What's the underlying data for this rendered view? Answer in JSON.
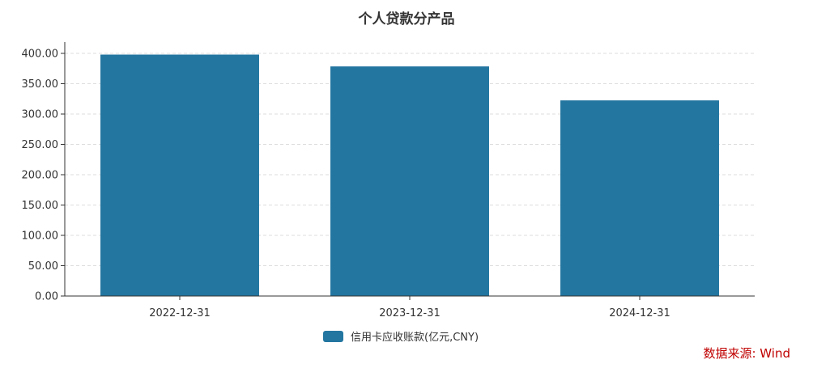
{
  "chart_data": {
    "type": "bar",
    "title": "个人贷款分产品",
    "categories": [
      "2022-12-31",
      "2023-12-31",
      "2024-12-31"
    ],
    "series": [
      {
        "name": "信用卡应收账款(亿元,CNY)",
        "values": [
          398.0,
          378.5,
          322.5
        ],
        "color": "#2376a0"
      }
    ],
    "ylim": [
      0,
      400
    ],
    "yticks": [
      "0.00",
      "50.00",
      "100.00",
      "150.00",
      "200.00",
      "250.00",
      "300.00",
      "350.00",
      "400.00"
    ],
    "grid": true,
    "legend_position": "bottom-center"
  },
  "source_text": "数据来源: Wind"
}
